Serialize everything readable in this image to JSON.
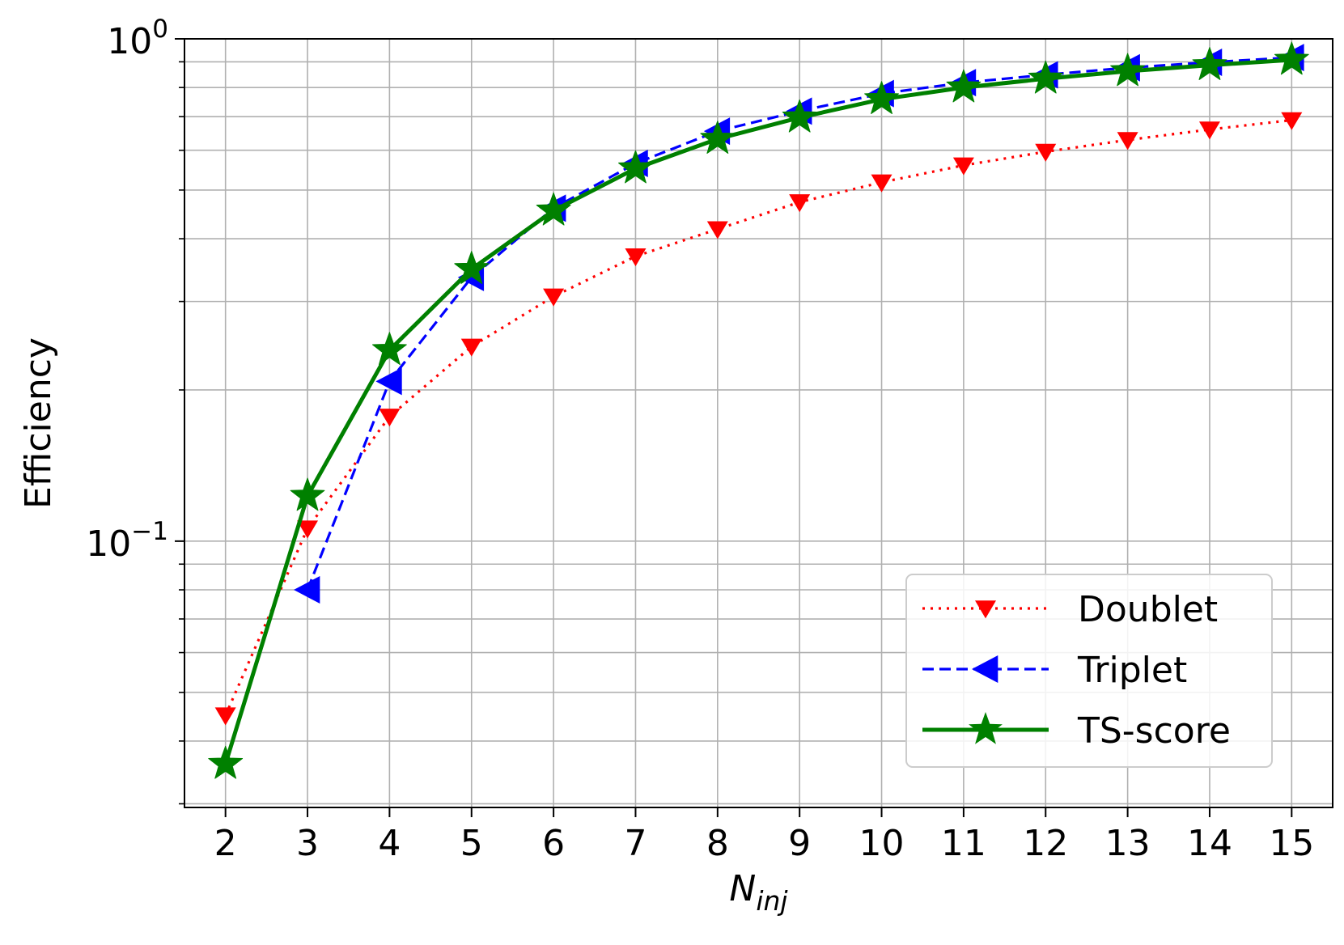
{
  "chart_data": {
    "type": "line",
    "xlabel": "N",
    "xlabel_subscript": "inj",
    "ylabel": "Efficiency",
    "y_scale": "log",
    "ylim": [
      0.0295,
      1.0
    ],
    "xlim": [
      1.5,
      15.5
    ],
    "grid": true,
    "legend_position": "bottom-right",
    "x_ticks": [
      2,
      3,
      4,
      5,
      6,
      7,
      8,
      9,
      10,
      11,
      12,
      13,
      14,
      15
    ],
    "y_major_ticks": [
      {
        "value": 1.0,
        "base": "10",
        "exp": "0"
      },
      {
        "value": 0.1,
        "base": "10",
        "exp": "−1"
      }
    ],
    "y_minor_ticks": [
      0.03,
      0.04,
      0.05,
      0.06,
      0.07,
      0.08,
      0.09,
      0.2,
      0.3,
      0.4,
      0.5,
      0.6,
      0.7,
      0.8,
      0.9
    ],
    "series": [
      {
        "name": "Doublet",
        "color": "#ff0000",
        "line_style": "dotted",
        "marker": "triangle-down",
        "x": [
          2,
          3,
          4,
          5,
          6,
          7,
          8,
          9,
          10,
          11,
          12,
          13,
          14,
          15
        ],
        "y": [
          0.045,
          0.106,
          0.177,
          0.244,
          0.307,
          0.369,
          0.418,
          0.473,
          0.518,
          0.56,
          0.596,
          0.629,
          0.66,
          0.689
        ]
      },
      {
        "name": "Triplet",
        "color": "#0000ff",
        "line_style": "dashed",
        "marker": "triangle-left",
        "x": [
          3,
          4,
          5,
          6,
          7,
          8,
          9,
          10,
          11,
          12,
          13,
          14,
          15
        ],
        "y": [
          0.08,
          0.208,
          0.335,
          0.46,
          0.565,
          0.655,
          0.718,
          0.778,
          0.818,
          0.848,
          0.876,
          0.898,
          0.918
        ]
      },
      {
        "name": "TS-score",
        "color": "#008000",
        "line_style": "solid",
        "marker": "star",
        "x": [
          2,
          3,
          4,
          5,
          6,
          7,
          8,
          9,
          10,
          11,
          12,
          13,
          14,
          15
        ],
        "y": [
          0.036,
          0.123,
          0.24,
          0.348,
          0.455,
          0.552,
          0.632,
          0.697,
          0.758,
          0.8,
          0.833,
          0.862,
          0.886,
          0.908
        ]
      }
    ]
  }
}
